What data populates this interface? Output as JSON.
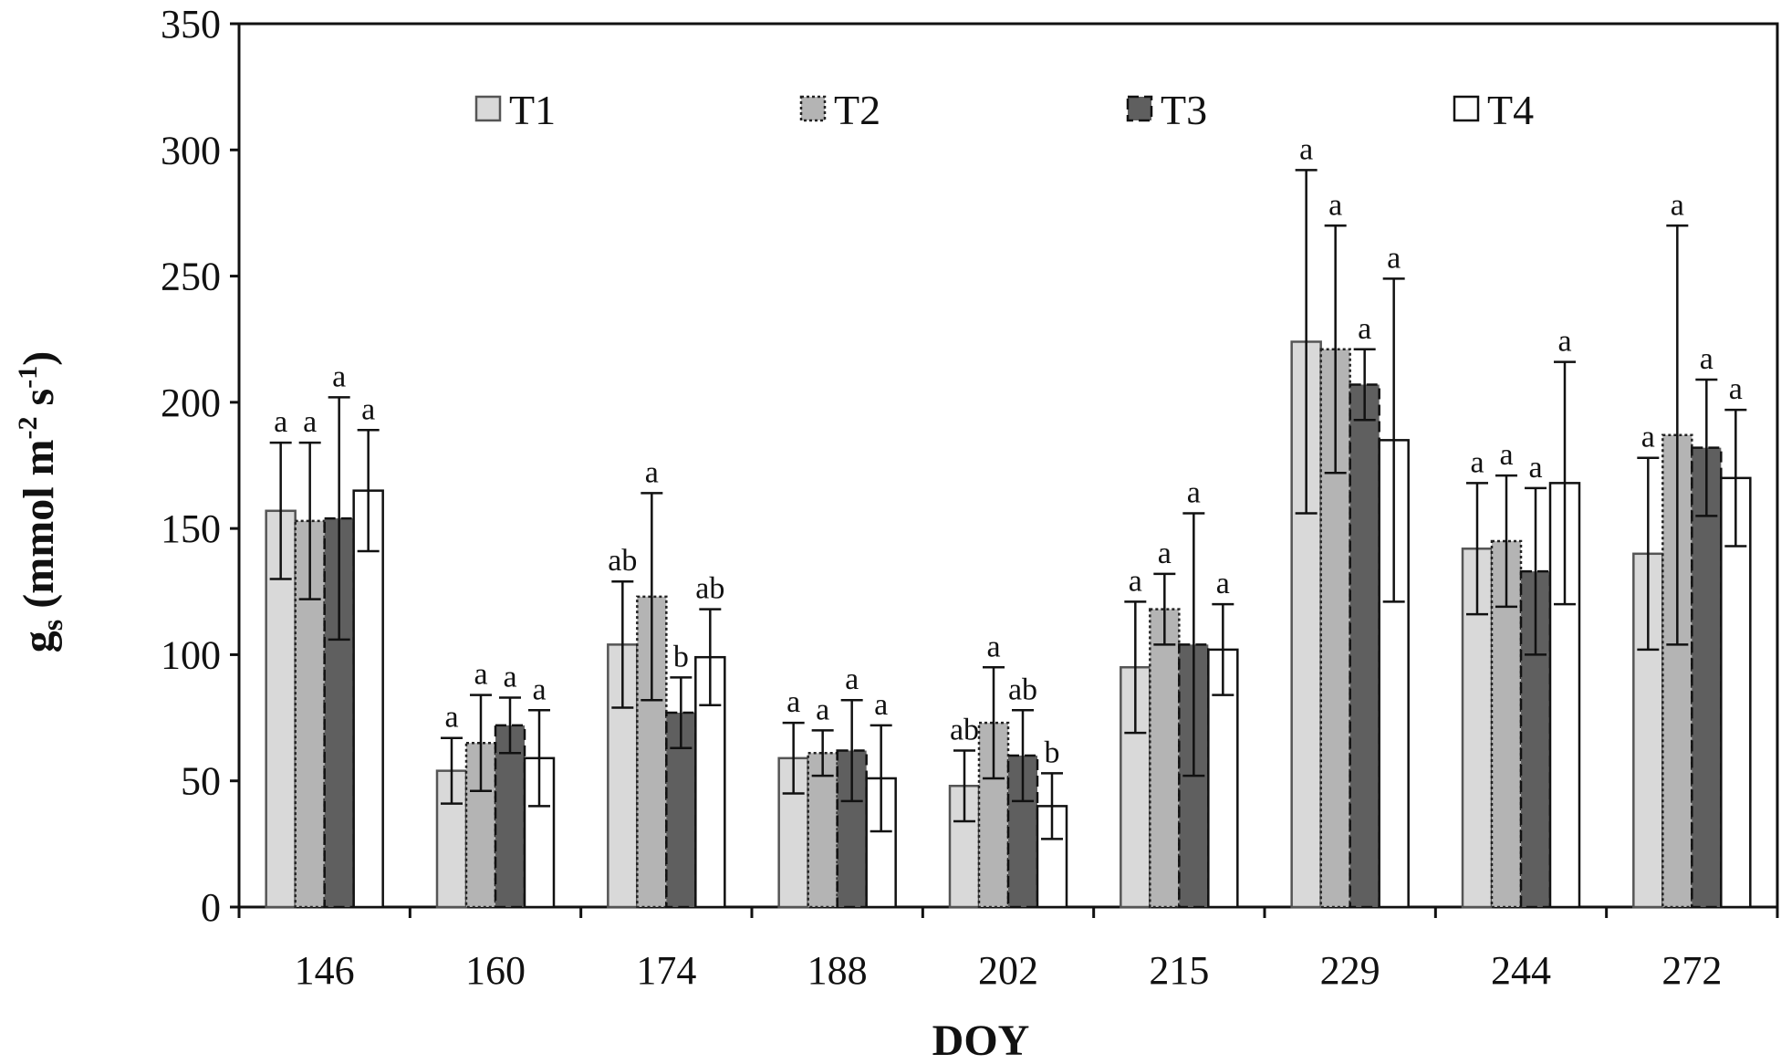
{
  "chart_data": {
    "type": "bar",
    "title": "",
    "xlabel": "DOY",
    "ylabel": "gs (mmol m-2 s-1)",
    "ylabel_parts": {
      "main": "g",
      "sub": "s",
      "unit_open": " (mmol m",
      "exp1": "-2",
      "mid": " s",
      "exp2": "-1",
      "close": ")"
    },
    "ylim": [
      0,
      350
    ],
    "yticks": [
      0,
      50,
      100,
      150,
      200,
      250,
      300,
      350
    ],
    "grid": false,
    "legend_position": "top",
    "categories": [
      "146",
      "160",
      "174",
      "188",
      "202",
      "215",
      "229",
      "244",
      "272"
    ],
    "series": [
      {
        "name": "T1",
        "fill": "#d9d9d9",
        "stroke": "#555555",
        "dash": "solid",
        "values": [
          157,
          54,
          104,
          59,
          48,
          95,
          224,
          142,
          140
        ],
        "errors": [
          27,
          13,
          25,
          14,
          14,
          26,
          68,
          26,
          38
        ],
        "letters": [
          "a",
          "a",
          "ab",
          "a",
          "ab",
          "a",
          "a",
          "a",
          "a"
        ]
      },
      {
        "name": "T2",
        "fill": "#b4b4b4",
        "stroke": "#222222",
        "dash": "dotted",
        "values": [
          153,
          65,
          123,
          61,
          73,
          118,
          221,
          145,
          187
        ],
        "errors": [
          31,
          19,
          41,
          9,
          22,
          14,
          49,
          26,
          83
        ],
        "letters": [
          "a",
          "a",
          "a",
          "a",
          "a",
          "a",
          "a",
          "a",
          "a"
        ]
      },
      {
        "name": "T3",
        "fill": "#5f5f5f",
        "stroke": "#111111",
        "dash": "dashed",
        "values": [
          154,
          72,
          77,
          62,
          60,
          104,
          207,
          133,
          182
        ],
        "errors": [
          48,
          11,
          14,
          20,
          18,
          52,
          14,
          33,
          27
        ],
        "letters": [
          "a",
          "a",
          "b",
          "a",
          "ab",
          "a",
          "a",
          "a",
          "a"
        ]
      },
      {
        "name": "T4",
        "fill": "#ffffff",
        "stroke": "#111111",
        "dash": "solid",
        "values": [
          165,
          59,
          99,
          51,
          40,
          102,
          185,
          168,
          170
        ],
        "errors": [
          24,
          19,
          19,
          21,
          13,
          18,
          64,
          48,
          27
        ],
        "letters": [
          "a",
          "a",
          "ab",
          "a",
          "b",
          "a",
          "a",
          "a",
          "a"
        ]
      }
    ]
  }
}
